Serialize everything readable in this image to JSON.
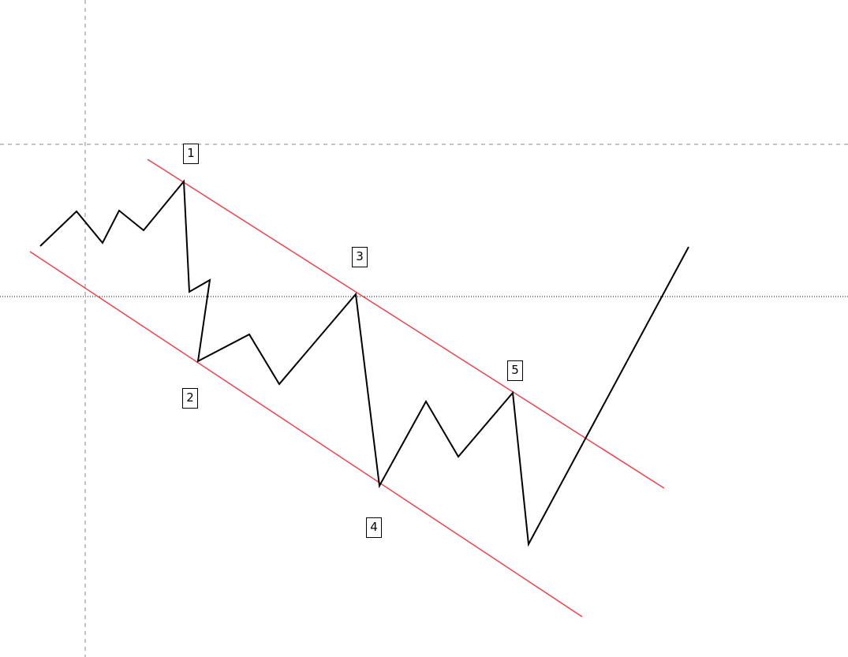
{
  "colors": {
    "background": "#ffffff",
    "price_line": "#000000",
    "channel_line": "#e8434f",
    "crosshair": "#888888",
    "dotted_line": "#000000"
  },
  "labels": {
    "wave_1": "1",
    "wave_2": "2",
    "wave_3": "3",
    "wave_4": "4",
    "wave_5": "5"
  }
}
